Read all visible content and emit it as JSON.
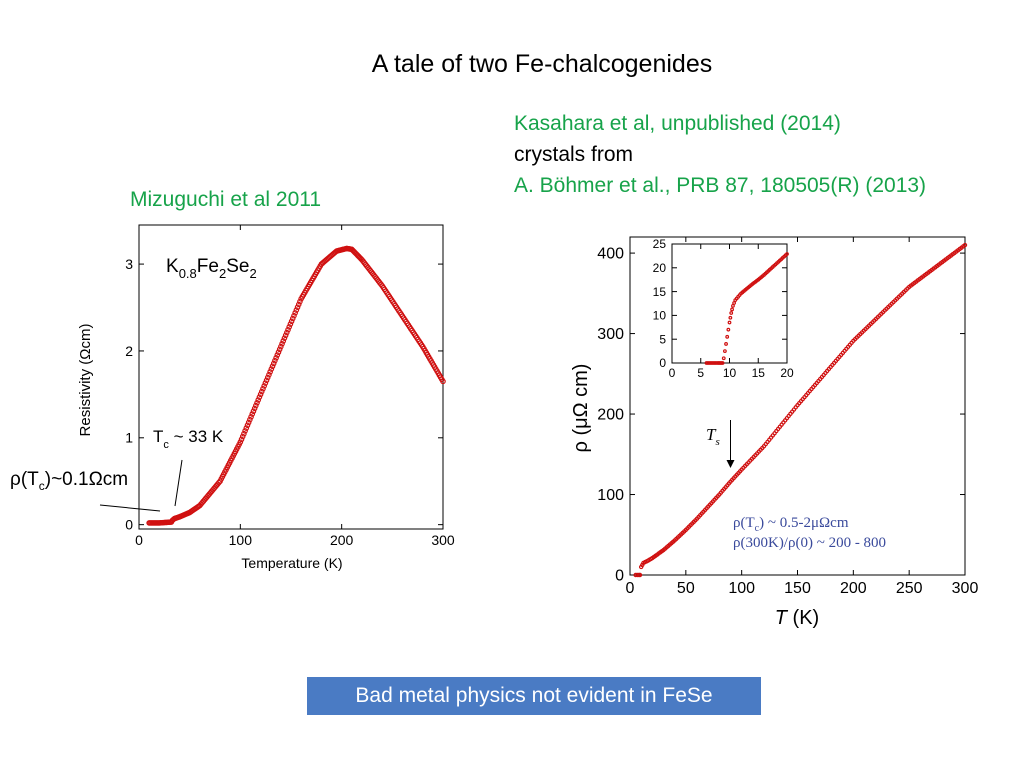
{
  "slide": {
    "title": "A tale of two Fe-chalcogenides",
    "left_caption": "Mizuguchi et al 2011",
    "right_caption_line1": "Kasahara et al, unpublished (2014)",
    "right_caption_line2": "crystals from",
    "right_caption_line3": "A. Böhmer et al., PRB 87, 180505(R) (2013)",
    "bottom_banner": "Bad metal physics not evident in FeSe",
    "left_rho_note": {
      "rho": "ρ",
      "paren_open": "(T",
      "sub": "c",
      "rest": ")~0.1Ωcm"
    },
    "accent_green": "#17a34a",
    "accent_blue": "#4a7bc4",
    "curve_red": "#d01010"
  },
  "chart_data": [
    {
      "type": "scatter",
      "ylabel": "Resistivity (Ωcm)",
      "xlabel": "Temperature (K)",
      "compound": {
        "k": "K",
        "s1": "0.8",
        "fe": "Fe",
        "s2": "2",
        "se": "Se",
        "s3": "2"
      },
      "tc_label": {
        "t": "T",
        "sub": "c",
        "rest": " ~ 33 K"
      },
      "xlim": [
        0,
        300
      ],
      "ylim": [
        -0.05,
        3.45
      ],
      "xticks": [
        "0",
        "100",
        "200",
        "300"
      ],
      "yticks": [
        "0",
        "1",
        "2",
        "3"
      ],
      "series": [
        {
          "x": [
            10,
            20,
            32,
            33,
            35,
            40,
            50,
            60,
            80,
            100,
            120,
            140,
            160,
            180,
            195,
            205,
            210,
            220,
            240,
            260,
            280,
            300
          ],
          "y": [
            0.02,
            0.02,
            0.03,
            0.05,
            0.07,
            0.09,
            0.14,
            0.22,
            0.5,
            0.95,
            1.5,
            2.05,
            2.6,
            3.0,
            3.15,
            3.18,
            3.17,
            3.05,
            2.75,
            2.4,
            2.05,
            1.65
          ]
        }
      ]
    },
    {
      "type": "scatter",
      "ylabel": "ρ (μΩ cm)",
      "xlabel_italic": "T",
      "xlabel_rest": " (K)",
      "xlim": [
        0,
        300
      ],
      "ylim": [
        0,
        420
      ],
      "xticks": [
        "0",
        "50",
        "100",
        "150",
        "200",
        "250",
        "300"
      ],
      "yticks": [
        "0",
        "100",
        "200",
        "300",
        "400"
      ],
      "ts_label": {
        "t": "T",
        "sub": "s"
      },
      "ts_x": 90,
      "annotation_line1": {
        "rho": "ρ",
        "open": "(T",
        "sub": "c",
        "rest": ") ~ 0.5-2μΩcm"
      },
      "annotation_line2": "ρ(300K)/ρ(0) ~ 200 - 800",
      "series": [
        {
          "x": [
            5,
            8,
            9,
            10,
            12,
            15,
            20,
            30,
            40,
            50,
            60,
            70,
            80,
            90,
            100,
            120,
            150,
            200,
            250,
            300
          ],
          "y": [
            0,
            0,
            0,
            10,
            15,
            17,
            21,
            31,
            43,
            56,
            70,
            85,
            100,
            116,
            131,
            160,
            211,
            291,
            358,
            410
          ]
        }
      ],
      "inset": {
        "xlim": [
          0,
          20
        ],
        "ylim": [
          0,
          25
        ],
        "xticks": [
          "0",
          "5",
          "10",
          "15",
          "20"
        ],
        "yticks": [
          "0",
          "5",
          "10",
          "15",
          "20",
          "25"
        ],
        "series": [
          {
            "x": [
              6,
              7,
              8,
              8.8,
              9.0,
              9.2,
              9.4,
              9.6,
              9.8,
              10.0,
              10.3,
              10.6,
              11.0,
              12,
              13,
              14,
              15,
              16,
              17,
              18,
              19,
              20
            ],
            "y": [
              0,
              0,
              0,
              0,
              1,
              2.5,
              4,
              5.5,
              7,
              8.5,
              10.5,
              12,
              13.2,
              14.6,
              15.6,
              16.6,
              17.5,
              18.5,
              19.6,
              20.7,
              21.8,
              22.9
            ]
          }
        ]
      }
    }
  ]
}
